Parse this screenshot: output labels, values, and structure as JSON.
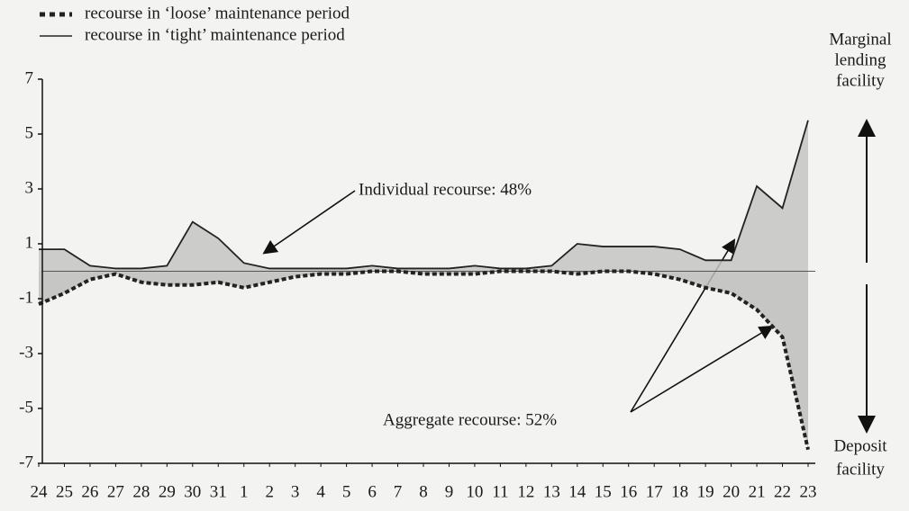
{
  "chart_data": {
    "type": "line",
    "categories": [
      "24",
      "25",
      "26",
      "27",
      "28",
      "29",
      "30",
      "31",
      "1",
      "2",
      "3",
      "4",
      "5",
      "6",
      "7",
      "8",
      "9",
      "10",
      "11",
      "12",
      "13",
      "14",
      "15",
      "16",
      "17",
      "18",
      "19",
      "20",
      "21",
      "22",
      "23"
    ],
    "series": [
      {
        "name": "recourse in ‘loose’ maintenance period",
        "color": "#222222",
        "fill": "#bdbdbd",
        "dash": true,
        "values": [
          -1.2,
          -0.8,
          -0.3,
          -0.1,
          -0.4,
          -0.5,
          -0.5,
          -0.4,
          -0.6,
          -0.4,
          -0.2,
          -0.1,
          -0.1,
          0,
          0,
          -0.1,
          -0.1,
          -0.1,
          0,
          0,
          0,
          -0.1,
          0,
          0,
          -0.1,
          -0.3,
          -0.6,
          -0.8,
          -1.4,
          -2.4,
          -6.5
        ]
      },
      {
        "name": "recourse in ‘tight’ maintenance period",
        "color": "#222222",
        "fill": "#c4c4c4",
        "dash": false,
        "values": [
          0.8,
          0.8,
          0.2,
          0.1,
          0.1,
          0.2,
          1.8,
          1.2,
          0.3,
          0.1,
          0.1,
          0.1,
          0.1,
          0.2,
          0.1,
          0.1,
          0.1,
          0.2,
          0.1,
          0.1,
          0.2,
          1.0,
          0.9,
          0.9,
          0.9,
          0.8,
          0.4,
          0.4,
          3.1,
          2.3,
          5.5
        ]
      }
    ],
    "ylim": [
      -7,
      7
    ],
    "yticks": [
      -7,
      -5,
      -3,
      -1,
      1,
      3,
      5,
      7
    ],
    "annotations": [
      "Individual recourse: 48%",
      "Aggregate recourse: 52%"
    ],
    "side_labels": {
      "top": [
        "Marginal",
        "lending",
        "facility"
      ],
      "bottom": [
        "Deposit",
        "facility"
      ]
    }
  }
}
